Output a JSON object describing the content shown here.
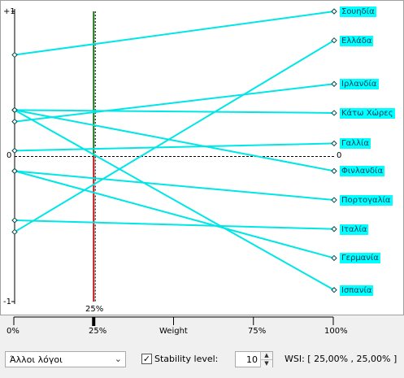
{
  "plot": {
    "y_top_label": "+1",
    "y_zero_label": "0",
    "y_bottom_label": "-1",
    "y_zero_label_right": "0",
    "stability_marker_label": "25%",
    "line_color": "#00e6e6",
    "items": [
      {
        "name": "Σουηδία",
        "left": 0.7,
        "right": 1.0
      },
      {
        "name": "Ελλάδα",
        "left": -0.52,
        "right": 0.8
      },
      {
        "name": "Ιρλανδία",
        "left": 0.24,
        "right": 0.5
      },
      {
        "name": "Κάτω Χώρες",
        "left": 0.32,
        "right": 0.3
      },
      {
        "name": "Γαλλία",
        "left": 0.04,
        "right": 0.09
      },
      {
        "name": "Φινλανδία",
        "left": 0.32,
        "right": -0.1
      },
      {
        "name": "Πορτογαλία",
        "left": -0.1,
        "right": -0.3
      },
      {
        "name": "Ιταλία",
        "left": -0.44,
        "right": -0.5
      },
      {
        "name": "Γερμανία",
        "left": -0.1,
        "right": -0.7
      },
      {
        "name": "Ισπανία",
        "left": 0.32,
        "right": -0.92
      }
    ]
  },
  "axis": {
    "ticks": [
      "0%",
      "25%",
      "Weight",
      "75%",
      "100%"
    ],
    "marker_value": 0.25
  },
  "controls": {
    "dropdown_value": "Άλλοι λόγοι",
    "dropdown_arrow": "⌄",
    "stability_checked": "✓",
    "stability_label": "Stability level:",
    "stability_value": "10",
    "spin_up": "▲",
    "spin_down": "▼",
    "wsi_text": "WSI: [ 25,00% , 25,00% ]"
  }
}
